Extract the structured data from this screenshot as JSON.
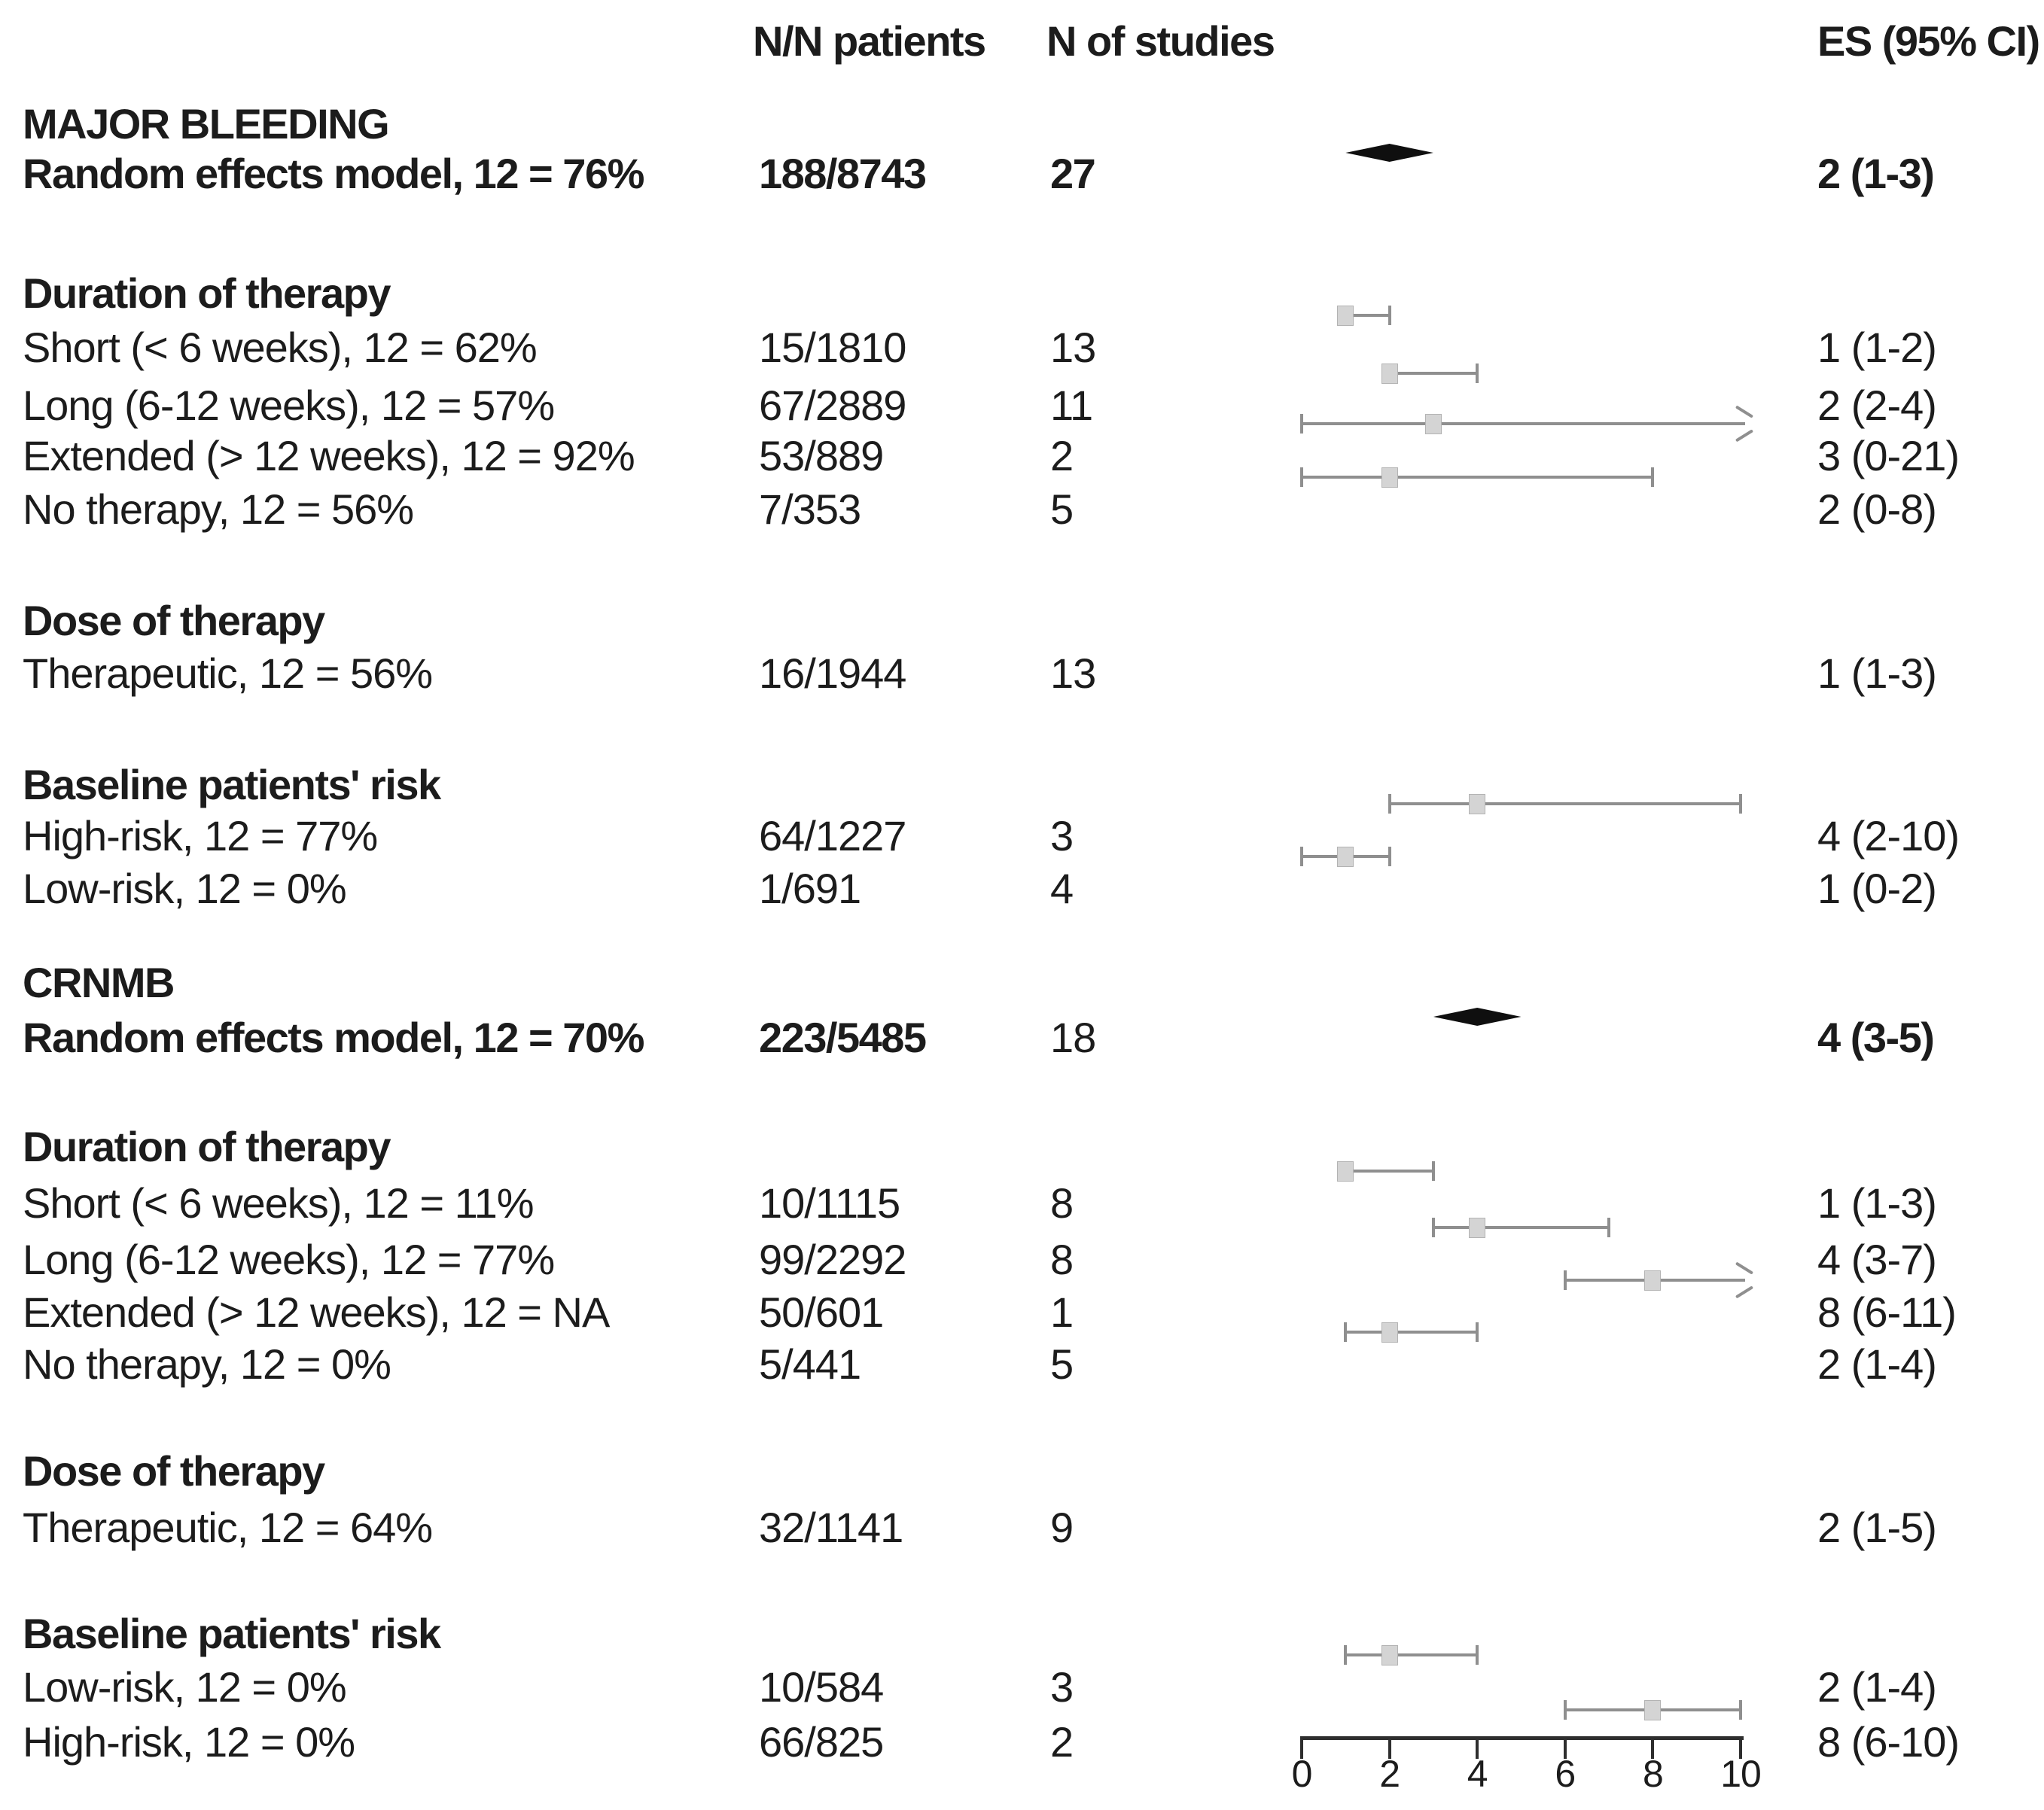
{
  "chart_data": {
    "type": "forest",
    "title": "",
    "columns": {
      "patients_header": "N/N patients",
      "studies_header": "N of studies",
      "es_header": "ES (95% CI)"
    },
    "axis": {
      "xlim": [
        0,
        10
      ],
      "ticks": [
        "0",
        "2",
        "4",
        "6",
        "8",
        "10"
      ],
      "tick_values": [
        0,
        2,
        4,
        6,
        8,
        10
      ]
    },
    "colors": {
      "text": "#1c1c1c",
      "ci_line": "#8f8f8f",
      "square_fill": "#d4d4d4",
      "square_border": "#b3b3b3",
      "diamond": "#0f0f0f",
      "axis": "#2e2e2e"
    },
    "rows": [
      {
        "kind": "colheads",
        "patients": "N/N patients",
        "studies": "N of studies",
        "es": "ES (95% CI)"
      },
      {
        "kind": "group",
        "label": "MAJOR BLEEDING"
      },
      {
        "kind": "pooled",
        "label": "Random effects model, 12 = 76%",
        "patients": "188/8743",
        "studies": "27",
        "studies_bold": true,
        "es": "2 (1-3)",
        "est": 2,
        "lo": 1,
        "hi": 3
      },
      {
        "kind": "section",
        "label": "Duration of therapy"
      },
      {
        "kind": "study",
        "label": "Short (< 6 weeks), 12 = 62%",
        "patients": "15/1810",
        "studies": "13",
        "es": "1 (1-2)",
        "est": 1,
        "lo": 1,
        "hi": 2
      },
      {
        "kind": "study",
        "label": "Long (6-12 weeks), 12 = 57%",
        "patients": "67/2889",
        "studies": "11",
        "es": "2 (2-4)",
        "est": 2,
        "lo": 2,
        "hi": 4
      },
      {
        "kind": "study",
        "label": "Extended (> 12 weeks), 12 = 92%",
        "patients": "53/889",
        "studies": "2",
        "es": "3 (0-21)",
        "est": 3,
        "lo": 0,
        "hi": 21
      },
      {
        "kind": "study",
        "label": "No therapy, 12 = 56%",
        "patients": "7/353",
        "studies": "5",
        "es": "2 (0-8)",
        "est": 2,
        "lo": 0,
        "hi": 8
      },
      {
        "kind": "section",
        "label": "Dose of therapy"
      },
      {
        "kind": "study",
        "label": "Therapeutic, 12 = 56%",
        "patients": "16/1944",
        "studies": "13",
        "es": "1 (1-3)",
        "est": null,
        "lo": null,
        "hi": null
      },
      {
        "kind": "section",
        "label": "Baseline patients' risk"
      },
      {
        "kind": "study",
        "label": "High-risk, 12 = 77%",
        "patients": "64/1227",
        "studies": "3",
        "es": "4 (2-10)",
        "est": 4,
        "lo": 2,
        "hi": 10
      },
      {
        "kind": "study",
        "label": "Low-risk, 12 = 0%",
        "patients": "1/691",
        "studies": "4",
        "es": "1 (0-2)",
        "est": 1,
        "lo": 0,
        "hi": 2
      },
      {
        "kind": "group",
        "label": "CRNMB"
      },
      {
        "kind": "pooled",
        "label": "Random effects model, 12 = 70%",
        "patients": "223/5485",
        "studies": "18",
        "studies_bold": false,
        "es": "4 (3-5)",
        "est": 4,
        "lo": 3,
        "hi": 5
      },
      {
        "kind": "section",
        "label": "Duration of therapy"
      },
      {
        "kind": "study",
        "label": "Short (< 6 weeks), 12 = 11%",
        "patients": "10/1115",
        "studies": "8",
        "es": "1 (1-3)",
        "est": 1,
        "lo": 1,
        "hi": 3
      },
      {
        "kind": "study",
        "label": "Long (6-12 weeks), 12 = 77%",
        "patients": "99/2292",
        "studies": "8",
        "es": "4 (3-7)",
        "est": 4,
        "lo": 3,
        "hi": 7
      },
      {
        "kind": "study",
        "label": "Extended (> 12 weeks), 12 = NA",
        "patients": "50/601",
        "studies": "1",
        "es": "8 (6-11)",
        "est": 8,
        "lo": 6,
        "hi": 11
      },
      {
        "kind": "study",
        "label": "No therapy, 12 = 0%",
        "patients": "5/441",
        "studies": "5",
        "es": "2 (1-4)",
        "est": 2,
        "lo": 1,
        "hi": 4
      },
      {
        "kind": "section",
        "label": "Dose of therapy"
      },
      {
        "kind": "study",
        "label": "Therapeutic, 12 = 64%",
        "patients": "32/1141",
        "studies": "9",
        "es": "2 (1-5)",
        "est": null,
        "lo": null,
        "hi": null
      },
      {
        "kind": "section",
        "label": "Baseline patients' risk"
      },
      {
        "kind": "study",
        "label": "Low-risk, 12 = 0%",
        "patients": "10/584",
        "studies": "3",
        "es": "2 (1-4)",
        "est": 2,
        "lo": 1,
        "hi": 4
      },
      {
        "kind": "study",
        "label": "High-risk, 12 = 0%",
        "patients": "66/825",
        "studies": "2",
        "es": "8 (6-10)",
        "est": 8,
        "lo": 6,
        "hi": 10
      }
    ]
  }
}
